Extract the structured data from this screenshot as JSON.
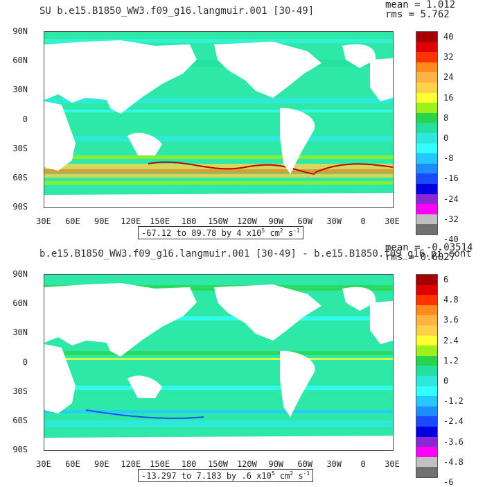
{
  "panels": [
    {
      "title": "SU b.e15.B1850_WW3.f09_g16.langmuir.001 [30-49]",
      "mean_label": "mean = 1.012",
      "rms_label": "rms = 5.762",
      "range_text": "-67.12 to 89.78 by 4 x10",
      "range_exp": "5",
      "range_units": " cm",
      "range_units_exp": "2",
      "range_tail": " s",
      "range_tail_exp": "-1",
      "colorbar_labels": [
        "40",
        "32",
        "24",
        "16",
        "8",
        "0",
        "-8",
        "-16",
        "-24",
        "-32",
        "-40"
      ]
    },
    {
      "title": "b.e15.B1850_WW3.f09_g16.langmuir.001 [30-49] - b.e15.B1850.f09_g16.pi_cont",
      "mean_label": "mean = -0.03514",
      "rms_label": "rms = 0.6027",
      "range_text": "-13.297 to 7.183 by .6 x10",
      "range_exp": "5",
      "range_units": " cm",
      "range_units_exp": "2",
      "range_tail": " s",
      "range_tail_exp": "-1",
      "colorbar_labels": [
        "6",
        "4.8",
        "3.6",
        "2.4",
        "1.2",
        "0",
        "-1.2",
        "-2.4",
        "-3.6",
        "-4.8",
        "-6"
      ]
    }
  ],
  "lat_labels": [
    "90N",
    "60N",
    "30N",
    "0",
    "30S",
    "60S",
    "90S"
  ],
  "lon_labels": [
    "30E",
    "60E",
    "90E",
    "120E",
    "150E",
    "180",
    "150W",
    "120W",
    "90W",
    "60W",
    "30W",
    "0",
    "30E"
  ],
  "colorbar_colors": [
    "#a50000",
    "#e00000",
    "#ff3300",
    "#ff8c1a",
    "#ffb347",
    "#ffd24a",
    "#ffff33",
    "#9ef01a",
    "#2ad44a",
    "#24e0a0",
    "#2ee8e0",
    "#33ffff",
    "#24c8ff",
    "#1f8cff",
    "#1a4cff",
    "#0000e0",
    "#8a28d6",
    "#ff00ff",
    "#c0c0c0",
    "#707070"
  ],
  "ocean_color": "#2ee8a8",
  "land_color": "#ffffff"
}
